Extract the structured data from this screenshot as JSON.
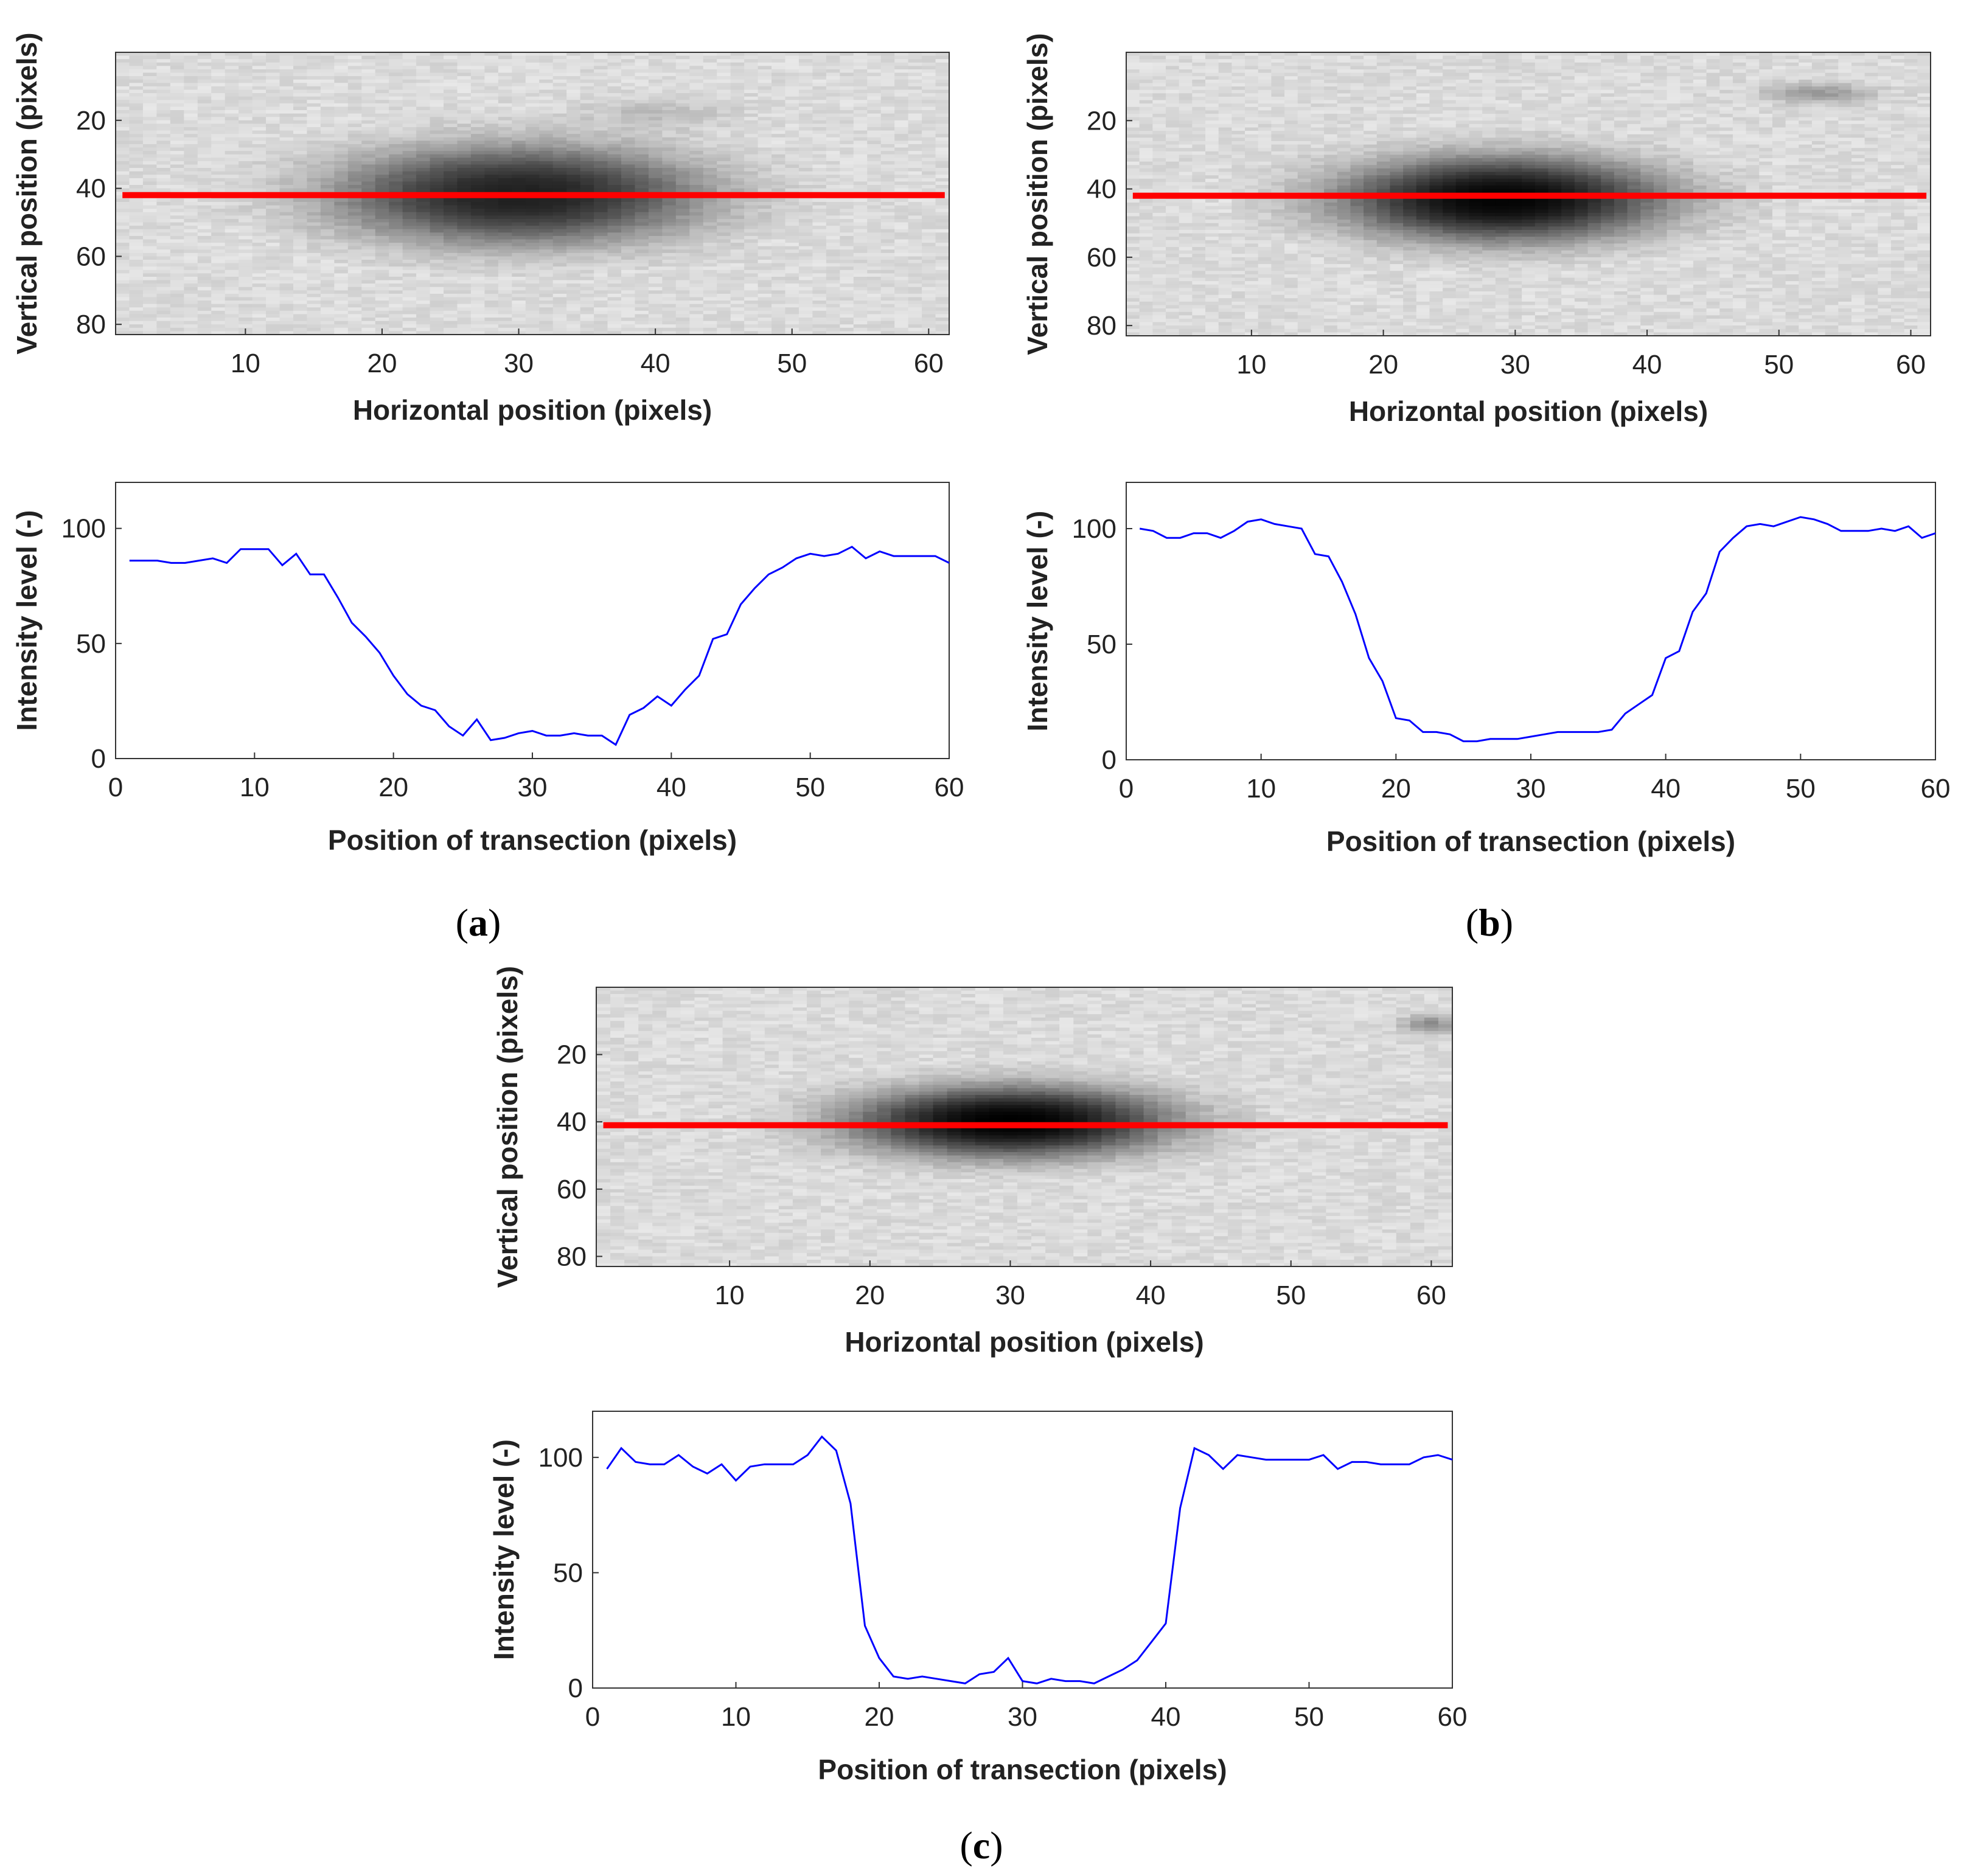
{
  "figure": {
    "panels": [
      {
        "id": "a",
        "caption_open": "(",
        "caption_letter": "a",
        "caption_close": ")",
        "image": {
          "xlabel": "Horizontal position (pixels)",
          "ylabel": "Vertical position (pixels)",
          "x_ticks": [
            "10",
            "20",
            "30",
            "40",
            "50",
            "60"
          ],
          "y_ticks": [
            "20",
            "40",
            "60",
            "80"
          ],
          "blob": {
            "cx": 30,
            "cy": 42,
            "rx": 14,
            "ry": 15,
            "darkness": 0.85
          },
          "extra_spots": [
            {
              "cx": 40,
              "cy": 18,
              "rx": 5,
              "ry": 4,
              "darkness": 0.15
            }
          ],
          "transect_y": 42,
          "background_noise_seed": 11
        },
        "profile": {
          "xlabel": "Position of transection (pixels)",
          "ylabel": "Intensity level (-)",
          "x_ticks": [
            "0",
            "10",
            "20",
            "30",
            "40",
            "50",
            "60"
          ],
          "y_ticks": [
            "0",
            "50",
            "100"
          ]
        }
      },
      {
        "id": "b",
        "caption_open": "(",
        "caption_letter": "b",
        "caption_close": ")",
        "image": {
          "xlabel": "Horizontal position (pixels)",
          "ylabel": "Vertical position (pixels)",
          "x_ticks": [
            "10",
            "20",
            "30",
            "40",
            "50",
            "60"
          ],
          "y_ticks": [
            "20",
            "40",
            "60",
            "80"
          ],
          "blob": {
            "cx": 29,
            "cy": 43,
            "rx": 13,
            "ry": 13,
            "darkness": 0.98
          },
          "extra_spots": [
            {
              "cx": 53,
              "cy": 12,
              "rx": 4,
              "ry": 3,
              "darkness": 0.3
            }
          ],
          "transect_y": 42,
          "background_noise_seed": 23
        },
        "profile": {
          "xlabel": "Position of transection (pixels)",
          "ylabel": "Intensity level (-)",
          "x_ticks": [
            "0",
            "10",
            "20",
            "30",
            "40",
            "50",
            "60"
          ],
          "y_ticks": [
            "0",
            "50",
            "100"
          ]
        }
      },
      {
        "id": "c",
        "caption_open": "(",
        "caption_letter": "c",
        "caption_close": ")",
        "image": {
          "xlabel": "Horizontal position (pixels)",
          "ylabel": "Vertical position (pixels)",
          "x_ticks": [
            "10",
            "20",
            "30",
            "40",
            "50",
            "60"
          ],
          "y_ticks": [
            "20",
            "40",
            "60",
            "80"
          ],
          "blob": {
            "cx": 30,
            "cy": 40,
            "rx": 12,
            "ry": 11,
            "darkness": 1.0
          },
          "extra_spots": [
            {
              "cx": 60,
              "cy": 11,
              "rx": 2,
              "ry": 3,
              "darkness": 0.35
            }
          ],
          "transect_y": 41,
          "background_noise_seed": 37
        },
        "profile": {
          "xlabel": "Position of transection (pixels)",
          "ylabel": "Intensity level (-)",
          "x_ticks": [
            "0",
            "10",
            "20",
            "30",
            "40",
            "50",
            "60"
          ],
          "y_ticks": [
            "0",
            "50",
            "100"
          ]
        }
      }
    ]
  },
  "chart_data": [
    {
      "type": "heatmap",
      "panel": "a",
      "title": "",
      "xlabel": "Horizontal position (pixels)",
      "ylabel": "Vertical position (pixels)",
      "xlim": [
        0.5,
        61.5
      ],
      "ylim": [
        83,
        0
      ],
      "x_ticks": [
        10,
        20,
        30,
        40,
        50,
        60
      ],
      "y_ticks": [
        20,
        40,
        60,
        80
      ],
      "transection_line": {
        "y": 42,
        "x_range": [
          1,
          61
        ],
        "color": "#ff0000"
      }
    },
    {
      "type": "line",
      "panel": "a",
      "title": "",
      "xlabel": "Position of transection (pixels)",
      "ylabel": "Intensity level (-)",
      "xlim": [
        0,
        60
      ],
      "ylim": [
        0,
        120
      ],
      "line_color": "#0000ff",
      "x": [
        1,
        2,
        3,
        4,
        5,
        6,
        7,
        8,
        9,
        10,
        11,
        12,
        13,
        14,
        15,
        16,
        17,
        18,
        19,
        20,
        21,
        22,
        23,
        24,
        25,
        26,
        27,
        28,
        29,
        30,
        31,
        32,
        33,
        34,
        35,
        36,
        37,
        38,
        39,
        40,
        41,
        42,
        43,
        44,
        45,
        46,
        47,
        48,
        49,
        50,
        51,
        52,
        53,
        54,
        55,
        56,
        57,
        58,
        59,
        60
      ],
      "values": [
        86,
        86,
        86,
        85,
        85,
        86,
        87,
        85,
        91,
        91,
        91,
        84,
        89,
        80,
        80,
        70,
        59,
        53,
        46,
        36,
        28,
        23,
        21,
        14,
        10,
        17,
        8,
        9,
        11,
        12,
        10,
        10,
        11,
        10,
        10,
        6,
        19,
        22,
        27,
        23,
        30,
        36,
        52,
        54,
        67,
        74,
        80,
        83,
        87,
        89,
        88,
        89,
        92,
        87,
        90,
        88,
        88,
        88,
        88,
        85
      ]
    },
    {
      "type": "heatmap",
      "panel": "b",
      "title": "",
      "xlabel": "Horizontal position (pixels)",
      "ylabel": "Vertical position (pixels)",
      "xlim": [
        0.5,
        61.5
      ],
      "ylim": [
        83,
        0
      ],
      "x_ticks": [
        10,
        20,
        30,
        40,
        50,
        60
      ],
      "y_ticks": [
        20,
        40,
        60,
        80
      ],
      "transection_line": {
        "y": 42,
        "x_range": [
          1,
          61
        ],
        "color": "#ff0000"
      }
    },
    {
      "type": "line",
      "panel": "b",
      "title": "",
      "xlabel": "Position of transection (pixels)",
      "ylabel": "Intensity level (-)",
      "xlim": [
        0,
        60
      ],
      "ylim": [
        0,
        120
      ],
      "line_color": "#0000ff",
      "x": [
        1,
        2,
        3,
        4,
        5,
        6,
        7,
        8,
        9,
        10,
        11,
        12,
        13,
        14,
        15,
        16,
        17,
        18,
        19,
        20,
        21,
        22,
        23,
        24,
        25,
        26,
        27,
        28,
        29,
        30,
        31,
        32,
        33,
        34,
        35,
        36,
        37,
        38,
        39,
        40,
        41,
        42,
        43,
        44,
        45,
        46,
        47,
        48,
        49,
        50,
        51,
        52,
        53,
        54,
        55,
        56,
        57,
        58,
        59,
        60
      ],
      "values": [
        100,
        99,
        96,
        96,
        98,
        98,
        96,
        99,
        103,
        104,
        102,
        101,
        100,
        89,
        88,
        77,
        63,
        44,
        34,
        18,
        17,
        12,
        12,
        11,
        8,
        8,
        9,
        9,
        9,
        10,
        11,
        12,
        12,
        12,
        12,
        13,
        20,
        24,
        28,
        44,
        47,
        64,
        72,
        90,
        96,
        101,
        102,
        101,
        103,
        105,
        104,
        102,
        99,
        99,
        99,
        100,
        99,
        101,
        96,
        98
      ]
    },
    {
      "type": "heatmap",
      "panel": "c",
      "title": "",
      "xlabel": "Horizontal position (pixels)",
      "ylabel": "Vertical position (pixels)",
      "xlim": [
        0.5,
        61.5
      ],
      "ylim": [
        83,
        0
      ],
      "x_ticks": [
        10,
        20,
        30,
        40,
        50,
        60
      ],
      "y_ticks": [
        20,
        40,
        60,
        80
      ],
      "transection_line": {
        "y": 41,
        "x_range": [
          1,
          61
        ],
        "color": "#ff0000"
      }
    },
    {
      "type": "line",
      "panel": "c",
      "title": "",
      "xlabel": "Position of transection (pixels)",
      "ylabel": "Intensity level (-)",
      "xlim": [
        0,
        60
      ],
      "ylim": [
        0,
        120
      ],
      "line_color": "#0000ff",
      "x": [
        1,
        2,
        3,
        4,
        5,
        6,
        7,
        8,
        9,
        10,
        11,
        12,
        13,
        14,
        15,
        16,
        17,
        18,
        19,
        20,
        21,
        22,
        23,
        24,
        25,
        26,
        27,
        28,
        29,
        30,
        31,
        32,
        33,
        34,
        35,
        36,
        37,
        38,
        39,
        40,
        41,
        42,
        43,
        44,
        45,
        46,
        47,
        48,
        49,
        50,
        51,
        52,
        53,
        54,
        55,
        56,
        57,
        58,
        59,
        60
      ],
      "values": [
        95,
        104,
        98,
        97,
        97,
        101,
        96,
        93,
        97,
        90,
        96,
        97,
        97,
        97,
        101,
        109,
        103,
        80,
        27,
        13,
        5,
        4,
        5,
        4,
        3,
        2,
        6,
        7,
        13,
        3,
        2,
        4,
        3,
        3,
        2,
        5,
        8,
        12,
        20,
        28,
        78,
        104,
        101,
        95,
        101,
        100,
        99,
        99,
        99,
        99,
        101,
        95,
        98,
        98,
        97,
        97,
        97,
        100,
        101,
        99
      ]
    }
  ]
}
